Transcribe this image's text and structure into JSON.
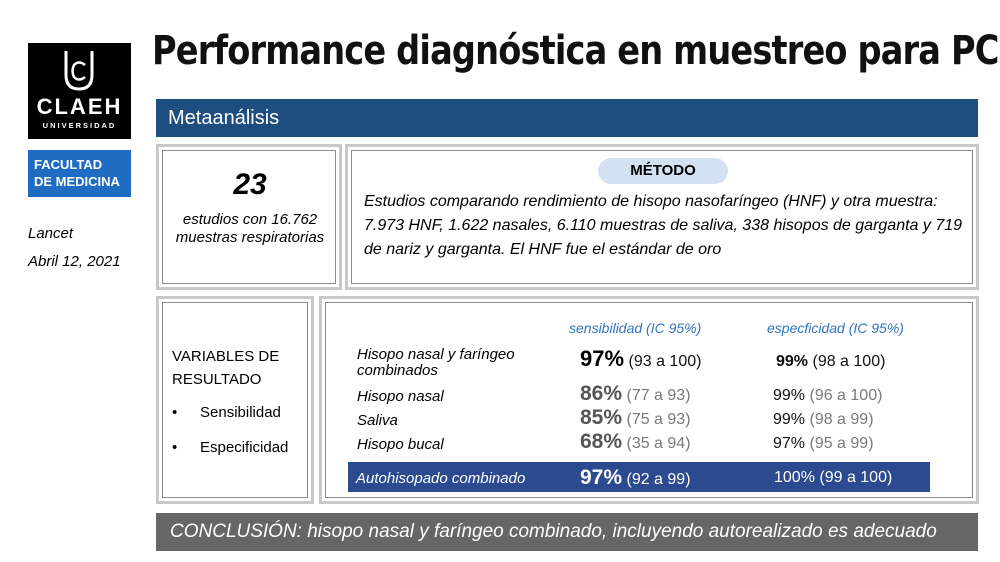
{
  "title": "Performance diagnóstica en muestreo para PCR",
  "logo": {
    "name": "CLAEH",
    "sub": "UNIVERSIDAD"
  },
  "faculty": {
    "line1": "FACULTAD",
    "line2": "DE MEDICINA"
  },
  "source": {
    "journal": "Lancet",
    "date": "Abril 12, 2021"
  },
  "banner": "Metaanálisis",
  "count": {
    "number": "23",
    "text": "estudios con 16.762 muestras respiratorias"
  },
  "method": {
    "label": "MÉTODO",
    "text": "Estudios comparando rendimiento de hisopo nasofaríngeo (HNF) y otra muestra: 7.973 HNF, 1.622 nasales, 6.110 muestras de saliva, 338 hisopos de garganta y 719 de nariz y garganta. El HNF fue el estándar de oro"
  },
  "variables": {
    "title": "VARIABLES DE RESULTADO",
    "items": [
      "Sensibilidad",
      "Especificidad"
    ]
  },
  "table": {
    "headers": {
      "sens": "sensibilidad (IC 95%)",
      "esp": "especficidad (IC 95%)"
    },
    "rows": [
      {
        "label": "Hisopo nasal y faríngeo combinados",
        "sens_val": "97%",
        "sens_ci": "(93 a 100)",
        "esp_val": "99%",
        "esp_ci": "(98 a 100)"
      },
      {
        "label": "Hisopo nasal",
        "sens_val": "86%",
        "sens_ci": "(77 a 93)",
        "esp_val": "99%",
        "esp_ci": "(96 a 100)"
      },
      {
        "label": "Saliva",
        "sens_val": "85%",
        "sens_ci": "(75 a 93)",
        "esp_val": "99%",
        "esp_ci": "(98 a 99)"
      },
      {
        "label": "Hisopo bucal",
        "sens_val": "68%",
        "sens_ci": "(35 a 94)",
        "esp_val": "97%",
        "esp_ci": "(95 a 99)"
      }
    ],
    "highlight": {
      "label": "Autohisopado combinado",
      "sens_val": "97%",
      "sens_ci": "(92 a 99)",
      "esp": "100% (99 a 100)"
    }
  },
  "conclusion": "CONCLUSIÓN: hisopo nasal y faríngeo combinado, incluyendo autorealizado es adecuado"
}
